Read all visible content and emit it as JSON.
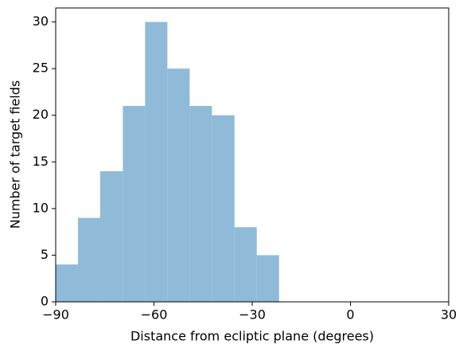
{
  "chart_data": {
    "type": "histogram",
    "xlabel": "Distance from ecliptic plane (degrees)",
    "ylabel": "Number of target fields",
    "bins": [
      -90,
      -83.2,
      -76.4,
      -69.5,
      -62.7,
      -55.9,
      -49.1,
      -42.3,
      -35.4,
      -28.6,
      -21.8
    ],
    "values": [
      4,
      9,
      14,
      21,
      30,
      25,
      21,
      20,
      8,
      5
    ],
    "color": "#8fbbd9",
    "xlim": [
      -90,
      30
    ],
    "ylim": [
      0,
      31.5
    ],
    "xticks": [
      {
        "value": -90,
        "label": "−90"
      },
      {
        "value": -60,
        "label": "−60"
      },
      {
        "value": -30,
        "label": "−30"
      },
      0,
      30
    ],
    "yticks": [
      0,
      5,
      10,
      15,
      20,
      25,
      30
    ]
  }
}
